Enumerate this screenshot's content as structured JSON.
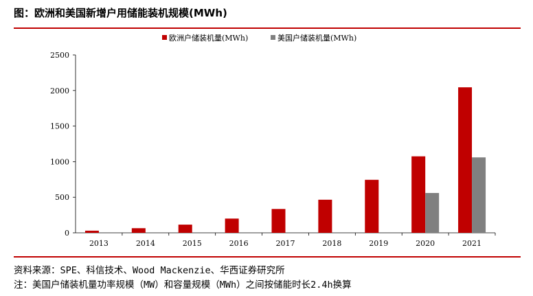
{
  "header": {
    "title": "图：欧洲和美国新增户用储能装机规模(MWh)"
  },
  "chart_data": {
    "type": "bar",
    "categories": [
      "2013",
      "2014",
      "2015",
      "2016",
      "2017",
      "2018",
      "2019",
      "2020",
      "2021"
    ],
    "series": [
      {
        "name": "欧洲户储装机量(MWh)",
        "color": "#c00000",
        "values": [
          30,
          65,
          115,
          200,
          335,
          465,
          745,
          1075,
          2045
        ]
      },
      {
        "name": "美国户储装机量(MWh)",
        "color": "#808080",
        "values": [
          0,
          0,
          0,
          0,
          0,
          0,
          0,
          560,
          1060
        ]
      }
    ],
    "yticks": [
      "0",
      "500",
      "1000",
      "1500",
      "2000",
      "2500"
    ],
    "ylim": [
      0,
      2500
    ],
    "grid": false,
    "legend_position": "top-center"
  },
  "footer": {
    "source": "资料来源：SPE、科信技术、Wood Mackenzie、华西证券研究所",
    "note": "注：美国户储装机量功率规模（MW）和容量规模（MWh）之间按储能时长2.4h换算"
  }
}
